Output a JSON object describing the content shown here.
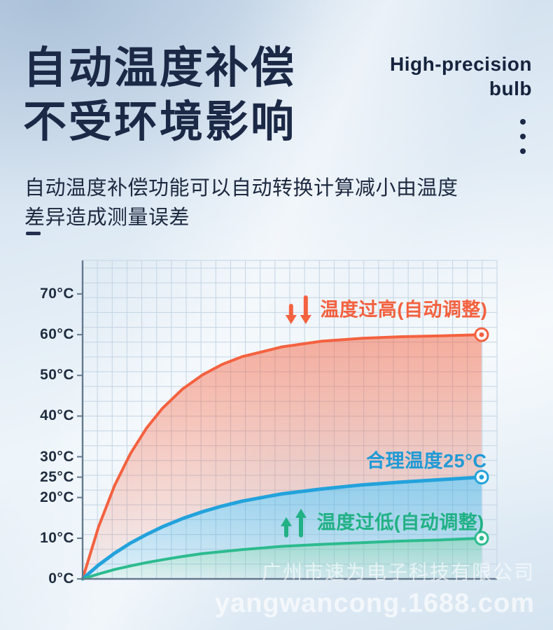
{
  "header": {
    "title_line1": "自动温度补偿",
    "title_line2": "不受环境影响",
    "corner_line1": "High-precision",
    "corner_line2": "bulb",
    "description_line1": "自动温度补偿功能可以自动转换计算减小由温度",
    "description_line2": "差异造成测量误差"
  },
  "watermark": {
    "company": "广州市速为电子科技有限公司",
    "site": "yangwancong.1688.com"
  },
  "colors": {
    "title": "#1b2946",
    "hot": "#f4613f",
    "normal": "#23a2dc",
    "low": "#2cbb8e",
    "grid": "#c3d4e4",
    "axis": "#64798f"
  },
  "chart_data": {
    "type": "area",
    "title": "",
    "xlabel": "",
    "ylabel": "",
    "ylim": [
      0,
      78
    ],
    "grid": true,
    "legend_position": "none",
    "x": [
      0,
      0.04,
      0.08,
      0.12,
      0.16,
      0.2,
      0.25,
      0.3,
      0.35,
      0.4,
      0.5,
      0.6,
      0.7,
      0.8,
      0.9,
      1
    ],
    "y_ticks": [
      0,
      10,
      20,
      25,
      30,
      40,
      50,
      60,
      70
    ],
    "y_tick_labels": [
      "0°C",
      "10°C",
      "20°C",
      "25°C",
      "30°C",
      "40°C",
      "50°C",
      "60°C",
      "70°C"
    ],
    "series": [
      {
        "name": "温度过高(自动调整)",
        "color": "#f4613f",
        "line_width": 4,
        "fill_opacity_top": 0.5,
        "fill_opacity_bottom": 0.06,
        "end_value": 60,
        "values": [
          0,
          12.8,
          22.9,
          30.8,
          37,
          41.9,
          46.6,
          50.1,
          52.7,
          54.6,
          57,
          58.4,
          59.1,
          59.5,
          59.7,
          60
        ]
      },
      {
        "name": "合理温度25°C",
        "color": "#23a2dc",
        "line_width": 5,
        "fill_opacity_top": 0.45,
        "fill_opacity_bottom": 0.08,
        "end_value": 25,
        "values": [
          0,
          3.4,
          6.3,
          8.8,
          10.9,
          12.8,
          14.8,
          16.5,
          17.9,
          19.1,
          20.9,
          22.1,
          23.1,
          23.8,
          24.4,
          25
        ]
      },
      {
        "name": "温度过低(自动调整)",
        "color": "#2cbb8e",
        "line_width": 4,
        "fill_opacity_top": 0.4,
        "fill_opacity_bottom": 0.07,
        "end_value": 10,
        "values": [
          0,
          1.2,
          2.3,
          3.2,
          4,
          4.7,
          5.5,
          6.2,
          6.7,
          7.2,
          8,
          8.5,
          8.9,
          9.3,
          9.6,
          10
        ]
      }
    ],
    "annotations": [
      {
        "id": "hot",
        "text": "温度过高(自动调整)",
        "color": "#f4613f",
        "x": 0.805,
        "y": 66.5,
        "arrows": "down",
        "arrow_x": 0.54,
        "arrow_y": 65.7
      },
      {
        "id": "normal",
        "text": "合理温度25°C",
        "color": "#1f9ad6",
        "x": 0.862,
        "y": 29.4
      },
      {
        "id": "low",
        "text": "温度过低(自动调整)",
        "color": "#21b184",
        "x": 0.797,
        "y": 14.2,
        "arrows": "up",
        "arrow_x": 0.528,
        "arrow_y": 13.8
      }
    ]
  }
}
